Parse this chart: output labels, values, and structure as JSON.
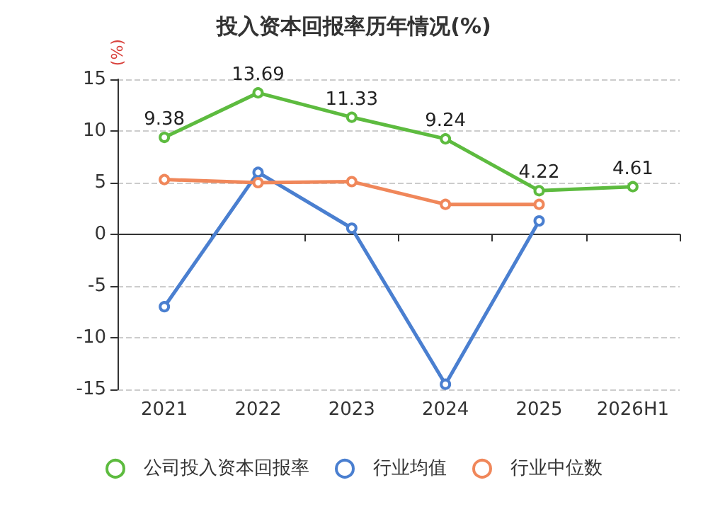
{
  "chart_data": {
    "type": "line",
    "title": "投入资本回报率历年情况(%)",
    "ylabel": "(%)",
    "categories": [
      "2021",
      "2022",
      "2023",
      "2024",
      "2025",
      "2026H1"
    ],
    "series": [
      {
        "name": "公司投入资本回报率",
        "color": "#5dbb3f",
        "values": [
          9.38,
          13.69,
          11.33,
          9.24,
          4.22,
          4.61
        ],
        "value_labels": [
          "9.38",
          "13.69",
          "11.33",
          "9.24",
          "4.22",
          "4.61"
        ]
      },
      {
        "name": "行业均值",
        "color": "#4a7fd0",
        "values": [
          -7,
          6,
          0.6,
          -14.5,
          1.3,
          null
        ]
      },
      {
        "name": "行业中位数",
        "color": "#f0875a",
        "values": [
          5.3,
          5,
          5.1,
          2.9,
          2.9,
          null
        ]
      }
    ],
    "ylim": [
      -15,
      15
    ],
    "yticks": [
      -15,
      -10,
      -5,
      0,
      5,
      10,
      15
    ],
    "grid": "y",
    "legend": "bottom",
    "marker": "circle",
    "line_style": "solid"
  }
}
